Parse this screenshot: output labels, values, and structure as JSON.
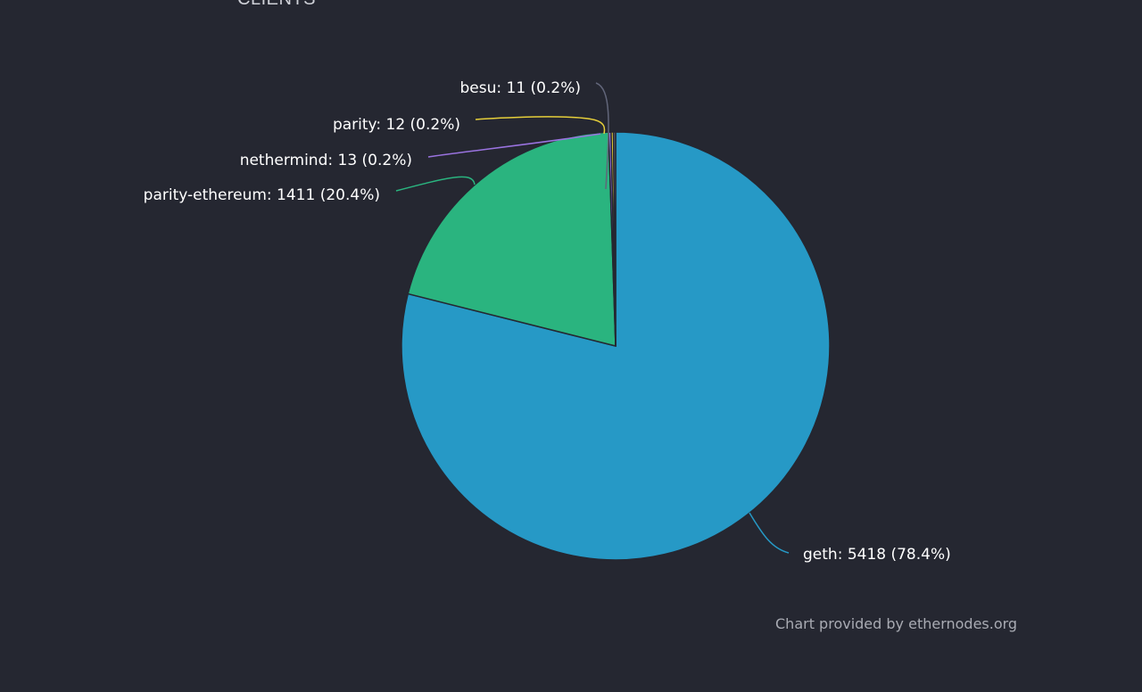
{
  "section_title": "CLIENTS",
  "credit": "Chart provided by ethernodes.org",
  "chart_data": {
    "type": "pie",
    "categories": [
      "geth",
      "parity-ethereum",
      "nethermind",
      "parity",
      "besu"
    ],
    "values": [
      5418,
      1411,
      13,
      12,
      11
    ],
    "percentages": [
      78.4,
      20.4,
      0.2,
      0.2,
      0.2
    ],
    "labels": [
      "geth: 5418 (78.4%)",
      "parity-ethereum: 1411 (20.4%)",
      "nethermind: 13 (0.2%)",
      "parity: 12 (0.2%)",
      "besu: 11 (0.2%)"
    ],
    "colors": [
      "#2699c6",
      "#2ab47f",
      "#9a73e0",
      "#e6cf3a",
      "#62667a"
    ],
    "start_angle": "12 o'clock",
    "direction": "clockwise"
  }
}
